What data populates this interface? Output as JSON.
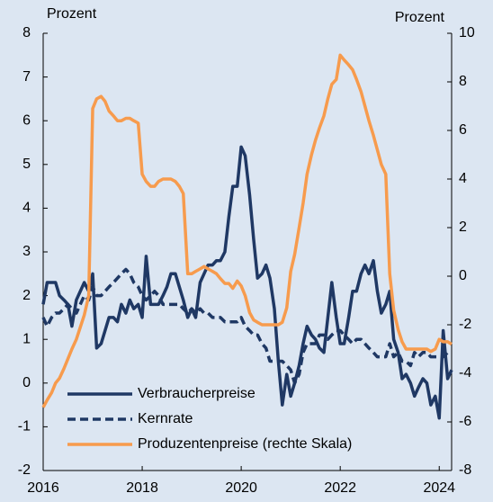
{
  "chart_data": {
    "type": "line",
    "y_label": "Prozent",
    "y2_label": "Prozent",
    "x": [
      2016,
      2016.08,
      2016.17,
      2016.25,
      2016.33,
      2016.42,
      2016.5,
      2016.58,
      2016.67,
      2016.75,
      2016.83,
      2016.92,
      2017,
      2017.08,
      2017.17,
      2017.25,
      2017.33,
      2017.42,
      2017.5,
      2017.58,
      2017.67,
      2017.75,
      2017.83,
      2017.92,
      2018,
      2018.08,
      2018.17,
      2018.25,
      2018.33,
      2018.42,
      2018.5,
      2018.58,
      2018.67,
      2018.75,
      2018.83,
      2018.92,
      2019,
      2019.08,
      2019.17,
      2019.25,
      2019.33,
      2019.42,
      2019.5,
      2019.58,
      2019.67,
      2019.75,
      2019.83,
      2019.92,
      2020,
      2020.08,
      2020.17,
      2020.25,
      2020.33,
      2020.42,
      2020.5,
      2020.58,
      2020.67,
      2020.75,
      2020.83,
      2020.92,
      2021,
      2021.08,
      2021.17,
      2021.25,
      2021.33,
      2021.42,
      2021.5,
      2021.58,
      2021.67,
      2021.75,
      2021.83,
      2021.92,
      2022,
      2022.08,
      2022.17,
      2022.25,
      2022.33,
      2022.42,
      2022.5,
      2022.58,
      2022.67,
      2022.75,
      2022.83,
      2022.92,
      2023,
      2023.08,
      2023.17,
      2023.25,
      2023.33,
      2023.42,
      2023.5,
      2023.58,
      2023.67,
      2023.75,
      2023.83,
      2023.92,
      2024,
      2024.08,
      2024.17,
      2024.25
    ],
    "series": [
      {
        "name": "Verbraucherpreise",
        "color": "#1f3864",
        "style": "solid",
        "values": [
          1.8,
          2.3,
          2.3,
          2.3,
          2.0,
          1.9,
          1.8,
          1.3,
          1.9,
          2.1,
          2.3,
          2.1,
          2.5,
          0.8,
          0.9,
          1.2,
          1.5,
          1.5,
          1.4,
          1.8,
          1.6,
          1.9,
          1.7,
          1.8,
          1.5,
          2.9,
          1.8,
          1.8,
          1.8,
          2.0,
          2.2,
          2.5,
          2.5,
          2.2,
          1.9,
          1.5,
          1.7,
          1.5,
          2.3,
          2.5,
          2.7,
          2.7,
          2.8,
          2.8,
          3.0,
          3.8,
          4.5,
          4.5,
          5.4,
          5.2,
          4.3,
          3.3,
          2.4,
          2.5,
          2.7,
          2.4,
          1.7,
          0.5,
          -0.5,
          0.2,
          -0.3,
          0.0,
          0.4,
          0.9,
          1.3,
          1.1,
          1.0,
          0.8,
          0.7,
          1.5,
          2.3,
          1.5,
          0.9,
          0.9,
          1.5,
          2.1,
          2.1,
          2.5,
          2.7,
          2.5,
          2.8,
          2.1,
          1.6,
          1.8,
          2.1,
          1.0,
          0.7,
          0.1,
          0.2,
          0.0,
          -0.3,
          -0.1,
          0.1,
          0.0,
          -0.5,
          -0.3,
          -0.8,
          1.2,
          0.1,
          0.3
        ]
      },
      {
        "name": "Kernrate",
        "color": "#1f3864",
        "style": "dashed",
        "values": [
          1.5,
          1.3,
          1.5,
          1.6,
          1.6,
          1.7,
          1.8,
          1.7,
          1.6,
          1.8,
          2.0,
          1.9,
          2.2,
          2.0,
          2.0,
          2.1,
          2.2,
          2.3,
          2.4,
          2.5,
          2.6,
          2.5,
          2.3,
          2.2,
          2.0,
          1.9,
          2.0,
          2.1,
          2.0,
          1.8,
          1.8,
          1.8,
          1.8,
          1.8,
          1.7,
          1.6,
          1.7,
          1.6,
          1.7,
          1.6,
          1.6,
          1.5,
          1.5,
          1.5,
          1.4,
          1.4,
          1.4,
          1.4,
          1.5,
          1.3,
          1.2,
          1.1,
          1.1,
          0.9,
          0.8,
          0.5,
          0.5,
          0.5,
          0.5,
          0.4,
          0.3,
          0.0,
          0.2,
          0.7,
          0.9,
          0.9,
          0.9,
          1.1,
          1.1,
          1.0,
          1.1,
          1.2,
          1.2,
          1.1,
          1.0,
          0.9,
          1.0,
          1.0,
          0.9,
          0.8,
          0.7,
          0.6,
          0.6,
          0.6,
          0.9,
          0.6,
          0.7,
          0.5,
          0.5,
          0.4,
          0.7,
          0.6,
          0.7,
          0.7,
          0.6,
          0.6,
          0.6,
          0.6,
          0.7,
          0.7
        ]
      },
      {
        "name": "Produzentenpreise (rechte Skala)",
        "color": "#f79b4d",
        "style": "solid",
        "axis": "y2",
        "values": [
          -5.4,
          -5.1,
          -4.8,
          -4.4,
          -4.2,
          -3.8,
          -3.4,
          -3.0,
          -2.6,
          -2.1,
          -1.6,
          -0.8,
          6.9,
          7.3,
          7.4,
          7.2,
          6.8,
          6.6,
          6.4,
          6.4,
          6.5,
          6.5,
          6.4,
          6.3,
          4.2,
          3.9,
          3.7,
          3.7,
          3.9,
          4.0,
          4.0,
          4.0,
          3.9,
          3.7,
          3.4,
          0.1,
          0.1,
          0.2,
          0.3,
          0.4,
          0.3,
          0.2,
          0.1,
          -0.1,
          -0.3,
          -0.3,
          -0.5,
          -0.2,
          -0.4,
          -0.8,
          -1.5,
          -1.8,
          -1.9,
          -2.0,
          -2.0,
          -2.0,
          -2.0,
          -2.0,
          -1.9,
          -1.3,
          0.2,
          0.9,
          2.0,
          3.0,
          4.2,
          5.0,
          5.6,
          6.1,
          6.6,
          7.3,
          7.9,
          8.1,
          9.1,
          8.9,
          8.7,
          8.5,
          8.1,
          7.6,
          7.0,
          6.4,
          5.8,
          5.2,
          4.6,
          4.2,
          0.1,
          -1.4,
          -2.2,
          -2.7,
          -3.0,
          -3.0,
          -3.0,
          -3.0,
          -3.0,
          -3.0,
          -3.1,
          -3.0,
          -2.6,
          -2.7,
          -2.7,
          -2.8
        ]
      }
    ],
    "xlim": [
      2016,
      2024.25
    ],
    "xticks": [
      2016,
      2018,
      2020,
      2022,
      2024
    ],
    "ylim": [
      -2,
      8
    ],
    "yticks": [
      -2,
      -1,
      0,
      1,
      2,
      3,
      4,
      5,
      6,
      7,
      8
    ],
    "y2lim": [
      -8,
      10
    ],
    "y2ticks": [
      -8,
      -6,
      -4,
      -2,
      0,
      2,
      4,
      6,
      8,
      10
    ],
    "grid": false,
    "legend": "lower left"
  }
}
